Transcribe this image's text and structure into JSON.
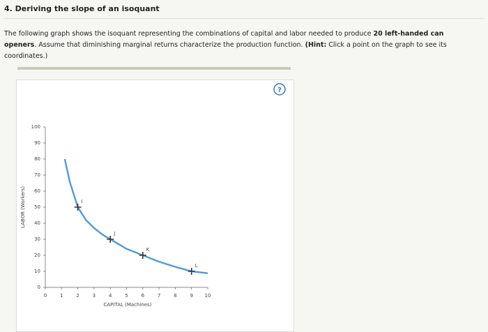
{
  "heading": "4. Deriving the slope of an isoquant",
  "instructions": [
    "The following graph shows the isoquant representing the combinations of capital and labor needed to produce ",
    "20 left-handed can openers",
    ". Assume that diminishing marginal returns characterize the production function. ",
    "(Hint:",
    " Click a point on the graph to see its coordinates.)"
  ],
  "help_icon": "?",
  "chart_data": {
    "type": "line",
    "x_label": "CAPITAL (Machines)",
    "y_label": "LABOR (Workers)",
    "xlim": [
      0,
      10
    ],
    "ylim": [
      0,
      100
    ],
    "xticks": [
      0,
      1,
      2,
      3,
      4,
      5,
      6,
      7,
      8,
      9,
      10
    ],
    "yticks": [
      0,
      10,
      20,
      30,
      40,
      50,
      60,
      70,
      80,
      90,
      100
    ],
    "series": [
      {
        "color": "#5a9bd0",
        "x": [
          1.2,
          1.5,
          2,
          2.5,
          3,
          3.5,
          4,
          5,
          6,
          7,
          8,
          9,
          10
        ],
        "values": [
          80,
          66,
          50,
          42,
          37,
          33,
          30,
          24,
          20,
          16,
          12.8,
          10,
          8.8
        ]
      }
    ],
    "points": {
      "color": "#333333",
      "labels": [
        "I",
        "J",
        "K",
        "L"
      ],
      "x": [
        2,
        4,
        6,
        9
      ],
      "y": [
        50,
        30,
        20,
        10
      ]
    }
  }
}
